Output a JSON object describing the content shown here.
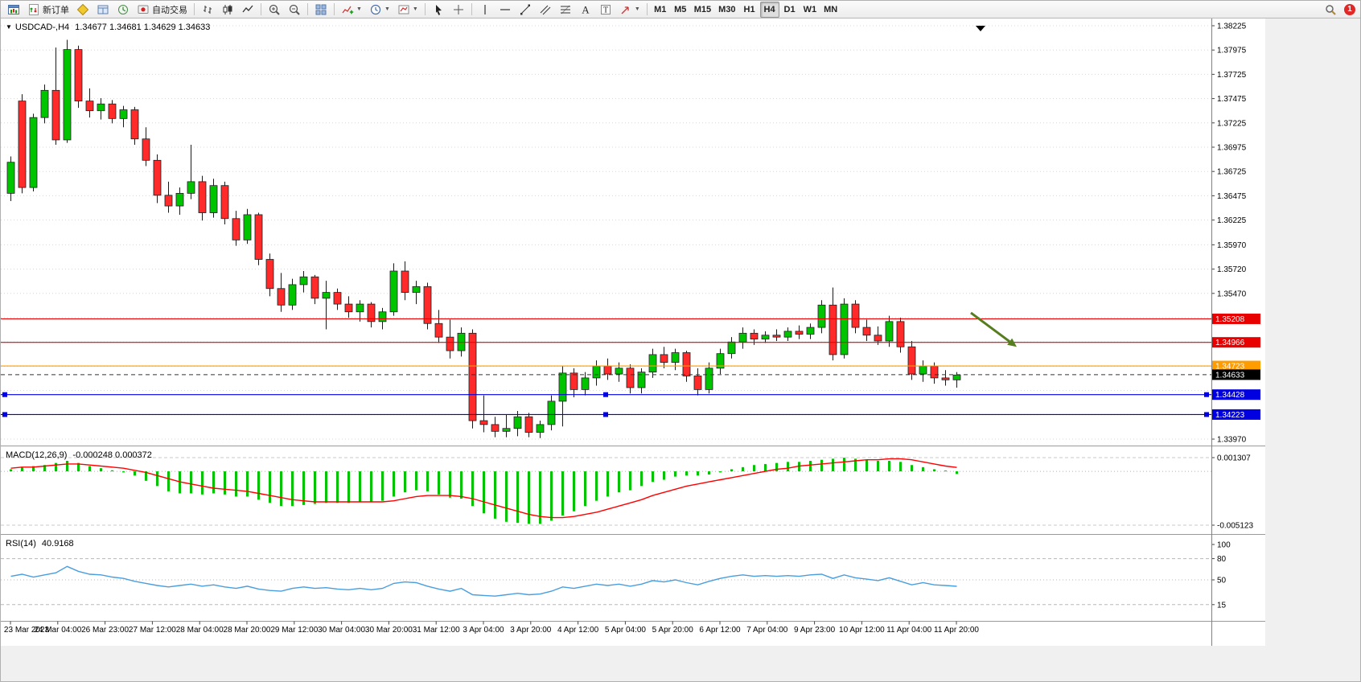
{
  "toolbar": {
    "new_order_label": "新订单",
    "autotrading_label": "自动交易",
    "timeframes": [
      "M1",
      "M5",
      "M15",
      "M30",
      "H1",
      "H4",
      "D1",
      "W1",
      "MN"
    ],
    "active_timeframe": "H4",
    "notification_count": "1"
  },
  "chart_data": {
    "type": "candlestick",
    "symbol": "USDCAD-",
    "period": "H4",
    "title": "USDCAD-,H4",
    "ohlc_text": "1.34677 1.34681 1.34629 1.34633",
    "price_range": {
      "top": 1.38225,
      "bottom": 1.3397
    },
    "price_labels": [
      "1.38225",
      "1.37975",
      "1.37725",
      "1.37475",
      "1.37225",
      "1.36975",
      "1.36725",
      "1.36475",
      "1.36225",
      "1.35970",
      "1.35720",
      "1.35470",
      "1.35220",
      "1.34970",
      "1.34720",
      "1.34470",
      "1.34220",
      "1.33970"
    ],
    "time_labels": [
      "23 Mar 2023",
      "24 Mar 04:00",
      "26 Mar 23:00",
      "27 Mar 12:00",
      "28 Mar 04:00",
      "28 Mar 20:00",
      "29 Mar 12:00",
      "30 Mar 04:00",
      "30 Mar 20:00",
      "31 Mar 12:00",
      "3 Apr 04:00",
      "3 Apr 20:00",
      "4 Apr 12:00",
      "5 Apr 04:00",
      "5 Apr 20:00",
      "6 Apr 12:00",
      "7 Apr 04:00",
      "9 Apr 23:00",
      "10 Apr 12:00",
      "11 Apr 04:00",
      "11 Apr 20:00"
    ],
    "up_color": "#00c400",
    "down_color": "#ff2a2a",
    "candles": [
      [
        1.365,
        1.3688,
        1.3642,
        1.3682
      ],
      [
        1.3745,
        1.3752,
        1.365,
        1.3656
      ],
      [
        1.3656,
        1.3732,
        1.3652,
        1.3728
      ],
      [
        1.3728,
        1.3762,
        1.3722,
        1.3756
      ],
      [
        1.3756,
        1.38,
        1.37,
        1.3705
      ],
      [
        1.3705,
        1.3808,
        1.3702,
        1.3798
      ],
      [
        1.3798,
        1.3802,
        1.3738,
        1.3745
      ],
      [
        1.3745,
        1.3758,
        1.3728,
        1.3735
      ],
      [
        1.3735,
        1.3748,
        1.3726,
        1.3742
      ],
      [
        1.3742,
        1.3746,
        1.3722,
        1.3727
      ],
      [
        1.3727,
        1.374,
        1.3718,
        1.3736
      ],
      [
        1.3736,
        1.3739,
        1.37,
        1.3706
      ],
      [
        1.3706,
        1.3718,
        1.3678,
        1.3684
      ],
      [
        1.3684,
        1.369,
        1.364,
        1.3648
      ],
      [
        1.3648,
        1.3662,
        1.363,
        1.3637
      ],
      [
        1.3637,
        1.3656,
        1.3628,
        1.365
      ],
      [
        1.365,
        1.37,
        1.3644,
        1.3662
      ],
      [
        1.3662,
        1.3668,
        1.3622,
        1.363
      ],
      [
        1.363,
        1.3665,
        1.3625,
        1.3658
      ],
      [
        1.3658,
        1.3662,
        1.3618,
        1.3624
      ],
      [
        1.3624,
        1.3632,
        1.3596,
        1.3602
      ],
      [
        1.3602,
        1.3634,
        1.3598,
        1.3628
      ],
      [
        1.3628,
        1.363,
        1.3576,
        1.3582
      ],
      [
        1.3582,
        1.3588,
        1.3544,
        1.3552
      ],
      [
        1.3552,
        1.3568,
        1.3528,
        1.3535
      ],
      [
        1.3535,
        1.3562,
        1.353,
        1.3556
      ],
      [
        1.3556,
        1.357,
        1.3548,
        1.3564
      ],
      [
        1.3564,
        1.3566,
        1.3536,
        1.3542
      ],
      [
        1.3542,
        1.356,
        1.351,
        1.3548
      ],
      [
        1.3548,
        1.3552,
        1.353,
        1.3536
      ],
      [
        1.3536,
        1.3544,
        1.3522,
        1.3528
      ],
      [
        1.3528,
        1.354,
        1.3518,
        1.3536
      ],
      [
        1.3536,
        1.3538,
        1.3512,
        1.3518
      ],
      [
        1.3518,
        1.3532,
        1.351,
        1.3528
      ],
      [
        1.3528,
        1.3578,
        1.3524,
        1.357
      ],
      [
        1.357,
        1.358,
        1.354,
        1.3548
      ],
      [
        1.3548,
        1.356,
        1.3536,
        1.3554
      ],
      [
        1.3554,
        1.3558,
        1.351,
        1.3516
      ],
      [
        1.3516,
        1.353,
        1.3496,
        1.3502
      ],
      [
        1.3502,
        1.352,
        1.348,
        1.3488
      ],
      [
        1.3488,
        1.3512,
        1.3482,
        1.3506
      ],
      [
        1.3506,
        1.351,
        1.3408,
        1.3416
      ],
      [
        1.3416,
        1.3442,
        1.3404,
        1.3412
      ],
      [
        1.3412,
        1.342,
        1.3399,
        1.3405
      ],
      [
        1.3405,
        1.3422,
        1.3399,
        1.3408
      ],
      [
        1.3408,
        1.3426,
        1.34,
        1.342
      ],
      [
        1.342,
        1.3424,
        1.3399,
        1.3404
      ],
      [
        1.3404,
        1.3416,
        1.3398,
        1.3412
      ],
      [
        1.3412,
        1.3442,
        1.3406,
        1.3436
      ],
      [
        1.3436,
        1.3472,
        1.341,
        1.3465
      ],
      [
        1.3465,
        1.347,
        1.344,
        1.3448
      ],
      [
        1.3448,
        1.3466,
        1.3442,
        1.346
      ],
      [
        1.346,
        1.3478,
        1.3452,
        1.3472
      ],
      [
        1.3472,
        1.348,
        1.3458,
        1.3464
      ],
      [
        1.3464,
        1.3476,
        1.3456,
        1.347
      ],
      [
        1.347,
        1.3474,
        1.3444,
        1.345
      ],
      [
        1.345,
        1.347,
        1.3444,
        1.3466
      ],
      [
        1.3466,
        1.349,
        1.346,
        1.3484
      ],
      [
        1.3484,
        1.3492,
        1.347,
        1.3476
      ],
      [
        1.3476,
        1.349,
        1.3468,
        1.3486
      ],
      [
        1.3486,
        1.3488,
        1.3456,
        1.3462
      ],
      [
        1.3462,
        1.347,
        1.3442,
        1.3448
      ],
      [
        1.3448,
        1.3476,
        1.3444,
        1.347
      ],
      [
        1.347,
        1.349,
        1.3464,
        1.3485
      ],
      [
        1.3485,
        1.3502,
        1.348,
        1.3497
      ],
      [
        1.3497,
        1.3512,
        1.349,
        1.3506
      ],
      [
        1.3506,
        1.351,
        1.3494,
        1.35
      ],
      [
        1.35,
        1.3508,
        1.3496,
        1.3504
      ],
      [
        1.3504,
        1.351,
        1.3498,
        1.3502
      ],
      [
        1.3502,
        1.3512,
        1.3498,
        1.3508
      ],
      [
        1.3508,
        1.3514,
        1.35,
        1.3505
      ],
      [
        1.3505,
        1.3516,
        1.35,
        1.3512
      ],
      [
        1.3512,
        1.354,
        1.3506,
        1.3535
      ],
      [
        1.3535,
        1.3553,
        1.3478,
        1.3484
      ],
      [
        1.3484,
        1.3542,
        1.348,
        1.3536
      ],
      [
        1.3536,
        1.354,
        1.3506,
        1.3512
      ],
      [
        1.3512,
        1.352,
        1.3498,
        1.3504
      ],
      [
        1.3504,
        1.3513,
        1.3494,
        1.3498
      ],
      [
        1.3498,
        1.3524,
        1.3492,
        1.3518
      ],
      [
        1.3518,
        1.3522,
        1.3486,
        1.3492
      ],
      [
        1.3492,
        1.3498,
        1.3458,
        1.3464
      ],
      [
        1.3464,
        1.3478,
        1.3456,
        1.3472
      ],
      [
        1.3472,
        1.3476,
        1.3454,
        1.346
      ],
      [
        1.346,
        1.3468,
        1.3452,
        1.3458
      ],
      [
        1.3458,
        1.3466,
        1.345,
        1.3463
      ]
    ],
    "levels": [
      {
        "price": 1.35208,
        "label": "1.35208",
        "color": "#e80000",
        "handles": false
      },
      {
        "price": 1.34966,
        "label": "1.34966",
        "color": "#e80000",
        "handles": false
      },
      {
        "price": 1.34723,
        "label": "1.34723",
        "color": "#ff9c00",
        "handles": false
      },
      {
        "price": 1.34428,
        "label": "1.34428",
        "color": "#0000e0",
        "handles": true
      },
      {
        "price": 1.34223,
        "label": "1.34223",
        "color": "#0000e0",
        "handles": true
      }
    ],
    "current_price": {
      "price": 1.34633,
      "label": "1.34633",
      "color": "#000000"
    },
    "arrow_annotation": {
      "color": "#567d1e",
      "from_price": 1.3527,
      "to_price": 1.3492
    },
    "macd": {
      "label": "MACD(12,26,9)",
      "values_text": "-0.000248 0.000372",
      "axis_labels": [
        "0.001307",
        "-0.005123"
      ],
      "hist_color": "#00c400",
      "signal_color": "#ff0000",
      "histogram": [
        0.0002,
        0.0004,
        0.0005,
        0.0006,
        0.0008,
        0.001,
        0.0008,
        0.0005,
        0.0003,
        0.0001,
        -0.0001,
        -0.0004,
        -0.0009,
        -0.0014,
        -0.0019,
        -0.0021,
        -0.0021,
        -0.0022,
        -0.0021,
        -0.0022,
        -0.0024,
        -0.0024,
        -0.0027,
        -0.003,
        -0.0033,
        -0.0033,
        -0.0032,
        -0.0031,
        -0.003,
        -0.003,
        -0.003,
        -0.0029,
        -0.0029,
        -0.0028,
        -0.0024,
        -0.002,
        -0.0018,
        -0.0019,
        -0.0022,
        -0.0025,
        -0.0026,
        -0.0033,
        -0.004,
        -0.0045,
        -0.0048,
        -0.0049,
        -0.005,
        -0.005,
        -0.0047,
        -0.0042,
        -0.0038,
        -0.0033,
        -0.0028,
        -0.0024,
        -0.002,
        -0.0018,
        -0.0014,
        -0.001,
        -0.0008,
        -0.0005,
        -0.0004,
        -0.0004,
        -0.0003,
        -0.0001,
        0.0002,
        0.0004,
        0.0006,
        0.0007,
        0.0008,
        0.0009,
        0.0009,
        0.001,
        0.0011,
        0.0012,
        0.0013,
        0.0012,
        0.0011,
        0.001,
        0.001,
        0.0009,
        0.0006,
        0.0004,
        0.0002,
        0.0,
        -0.000248
      ],
      "signal": [
        0.0003,
        0.0004,
        0.0004,
        0.0005,
        0.0006,
        0.0007,
        0.0007,
        0.0006,
        0.0005,
        0.0004,
        0.0003,
        0.0001,
        -0.0001,
        -0.0004,
        -0.0007,
        -0.001,
        -0.0012,
        -0.0014,
        -0.0016,
        -0.0017,
        -0.0018,
        -0.0019,
        -0.0021,
        -0.0023,
        -0.0025,
        -0.0027,
        -0.0028,
        -0.0029,
        -0.0029,
        -0.0029,
        -0.0029,
        -0.0029,
        -0.0029,
        -0.0029,
        -0.0028,
        -0.0026,
        -0.0024,
        -0.0023,
        -0.0023,
        -0.0023,
        -0.0024,
        -0.0026,
        -0.0029,
        -0.0032,
        -0.0035,
        -0.0038,
        -0.0041,
        -0.0043,
        -0.0044,
        -0.0044,
        -0.0043,
        -0.0041,
        -0.0039,
        -0.0036,
        -0.0033,
        -0.003,
        -0.0027,
        -0.0023,
        -0.002,
        -0.0017,
        -0.0014,
        -0.0012,
        -0.001,
        -0.0008,
        -0.0006,
        -0.0004,
        -0.0002,
        0.0,
        0.0002,
        0.0003,
        0.0005,
        0.0006,
        0.0007,
        0.0008,
        0.0009,
        0.001,
        0.0011,
        0.0011,
        0.0012,
        0.0012,
        0.0011,
        0.0009,
        0.0007,
        0.0005,
        0.000372
      ]
    },
    "rsi": {
      "label": "RSI(14)",
      "value_text": "40.9168",
      "color": "#4a9ede",
      "axis_labels": [
        "100",
        "80",
        "50",
        "15"
      ],
      "level_lines": [
        80,
        50,
        15
      ],
      "values": [
        55,
        58,
        54,
        57,
        60,
        69,
        62,
        58,
        57,
        54,
        52,
        48,
        45,
        42,
        40,
        42,
        44,
        41,
        43,
        40,
        38,
        41,
        37,
        35,
        34,
        38,
        40,
        38,
        39,
        37,
        36,
        38,
        36,
        38,
        45,
        47,
        46,
        41,
        37,
        34,
        38,
        29,
        28,
        27,
        29,
        31,
        29,
        30,
        34,
        40,
        38,
        41,
        44,
        42,
        44,
        41,
        44,
        49,
        47,
        50,
        46,
        43,
        48,
        52,
        55,
        57,
        55,
        56,
        55,
        56,
        55,
        57,
        58,
        52,
        57,
        53,
        51,
        49,
        53,
        48,
        43,
        46,
        43,
        42,
        40.9
      ]
    }
  }
}
